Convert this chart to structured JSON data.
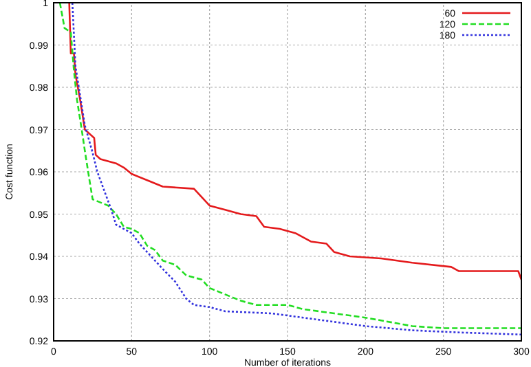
{
  "chart_data": {
    "type": "line",
    "xlabel": "Number of iterations",
    "ylabel": "Cost function",
    "xlim": [
      0,
      300
    ],
    "ylim": [
      0.92,
      1
    ],
    "xticks": [
      0,
      50,
      100,
      150,
      200,
      250,
      300
    ],
    "yticks": [
      0.92,
      0.93,
      0.94,
      0.95,
      0.96,
      0.97,
      0.98,
      0.99,
      1
    ],
    "grid": true,
    "legend": "top right",
    "series": [
      {
        "name": "60",
        "color": "#e41a1c",
        "line_style": "solid",
        "x": [
          10,
          11,
          13,
          14,
          17,
          20,
          23,
          26,
          27,
          30,
          40,
          45,
          50,
          60,
          70,
          90,
          100,
          110,
          120,
          130,
          135,
          145,
          155,
          165,
          175,
          180,
          190,
          210,
          230,
          255,
          260,
          298,
          300
        ],
        "values": [
          1.0,
          0.988,
          0.988,
          0.983,
          0.977,
          0.97,
          0.969,
          0.968,
          0.964,
          0.963,
          0.962,
          0.961,
          0.9595,
          0.958,
          0.9565,
          0.956,
          0.952,
          0.951,
          0.95,
          0.9495,
          0.947,
          0.9465,
          0.9455,
          0.9435,
          0.943,
          0.941,
          0.94,
          0.9395,
          0.9385,
          0.9375,
          0.9365,
          0.9365,
          0.9345
        ]
      },
      {
        "name": "120",
        "color": "#22dd22",
        "line_style": "dashed",
        "x": [
          4,
          7,
          11,
          13,
          15,
          18,
          20,
          23,
          25,
          35,
          40,
          45,
          50,
          55,
          60,
          65,
          70,
          78,
          85,
          95,
          100,
          110,
          120,
          130,
          150,
          160,
          180,
          200,
          230,
          250,
          300
        ],
        "values": [
          1.0,
          0.994,
          0.993,
          0.984,
          0.977,
          0.97,
          0.965,
          0.958,
          0.9535,
          0.952,
          0.95,
          0.947,
          0.9465,
          0.9455,
          0.9425,
          0.9415,
          0.939,
          0.938,
          0.9355,
          0.9345,
          0.9325,
          0.931,
          0.9295,
          0.9285,
          0.9285,
          0.9275,
          0.9265,
          0.9255,
          0.9235,
          0.923,
          0.923
        ]
      },
      {
        "name": "180",
        "color": "#3333dd",
        "line_style": "dotted",
        "x": [
          12,
          14,
          17,
          20,
          25,
          28,
          32,
          37,
          40,
          45,
          50,
          55,
          60,
          70,
          78,
          85,
          90,
          100,
          110,
          140,
          160,
          180,
          200,
          230,
          260,
          300
        ],
        "values": [
          1.0,
          0.985,
          0.978,
          0.971,
          0.9645,
          0.96,
          0.956,
          0.951,
          0.9475,
          0.9465,
          0.9455,
          0.943,
          0.941,
          0.937,
          0.934,
          0.93,
          0.9285,
          0.928,
          0.927,
          0.9265,
          0.9255,
          0.9245,
          0.9235,
          0.9225,
          0.922,
          0.9215
        ]
      }
    ]
  }
}
